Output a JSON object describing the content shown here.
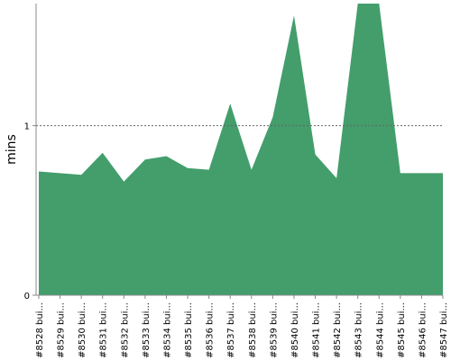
{
  "chart_data": {
    "type": "area",
    "title": "",
    "xlabel": "",
    "ylabel": "mins",
    "ylim": [
      0,
      1.72
    ],
    "yticks": [
      0,
      1
    ],
    "y_tick_labels": [
      "0",
      "1"
    ],
    "reference_line": {
      "value": 1,
      "style": "dotted"
    },
    "grid": false,
    "categories": [
      "#8528 bui...",
      "#8529 bui...",
      "#8530 bui...",
      "#8531 bui...",
      "#8532 bui...",
      "#8533 bui...",
      "#8534 bui...",
      "#8535 bui...",
      "#8536 bui...",
      "#8537 bui...",
      "#8538 bui...",
      "#8539 bui...",
      "#8540 bui...",
      "#8541 bui...",
      "#8542 bui...",
      "#8543 bui...",
      "#8544 bui...",
      "#8545 bui...",
      "#8546 bui...",
      "#8547 bui..."
    ],
    "series": [
      {
        "color": "#439e6c",
        "values": [
          0.73,
          0.72,
          0.71,
          0.84,
          0.67,
          0.8,
          0.82,
          0.75,
          0.74,
          1.13,
          0.74,
          1.05,
          1.65,
          0.83,
          0.69,
          1.72,
          1.72,
          0.72,
          0.72,
          0.72
        ]
      }
    ]
  }
}
